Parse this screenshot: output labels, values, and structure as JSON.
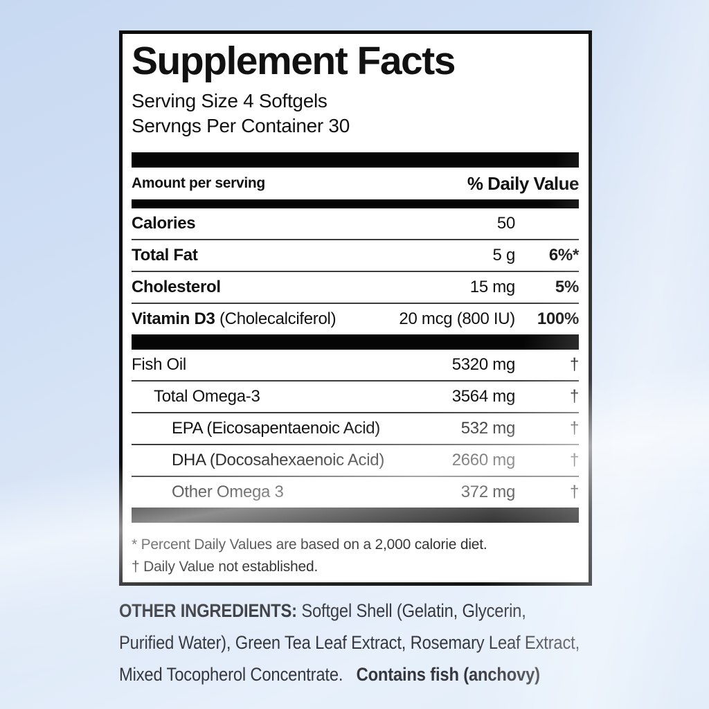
{
  "label": {
    "title": "Supplement Facts",
    "serving_size": "Serving Size 4 Softgels",
    "servings_per_container": "Servngs Per Container 30",
    "column_headers": {
      "amount": "Amount per serving",
      "daily_value": "% Daily Value"
    },
    "nutrient_rows": [
      {
        "name": "Calories",
        "paren": "",
        "amount": "50",
        "dv": "",
        "indent": 0,
        "bold_name": true,
        "bold_dv": true
      },
      {
        "name": "Total Fat",
        "paren": "",
        "amount": "5 g",
        "dv": "6%*",
        "indent": 0,
        "bold_name": true,
        "bold_dv": true
      },
      {
        "name": "Cholesterol",
        "paren": "",
        "amount": "15 mg",
        "dv": "5%",
        "indent": 0,
        "bold_name": true,
        "bold_dv": true
      },
      {
        "name": "Vitamin D3",
        "paren": " (Cholecalciferol)",
        "amount": "20 mcg (800 IU)",
        "dv": "100%",
        "indent": 0,
        "bold_name": true,
        "bold_dv": true
      }
    ],
    "blend_rows": [
      {
        "name": "Fish Oil",
        "paren": "",
        "amount": "5320 mg",
        "dv": "†",
        "indent": 0,
        "bold_name": false,
        "bold_dv": false
      },
      {
        "name": "Total Omega-3",
        "paren": "",
        "amount": "3564 mg",
        "dv": "†",
        "indent": 1,
        "bold_name": false,
        "bold_dv": false
      },
      {
        "name": "EPA (Eicosapentaenoic Acid)",
        "paren": "",
        "amount": "532 mg",
        "dv": "†",
        "indent": 2,
        "bold_name": false,
        "bold_dv": false
      },
      {
        "name": "DHA (Docosahexaenoic Acid)",
        "paren": "",
        "amount": "2660 mg",
        "dv": "†",
        "indent": 2,
        "bold_name": false,
        "bold_dv": false
      },
      {
        "name": "Other Omega 3",
        "paren": "",
        "amount": "372 mg",
        "dv": "†",
        "indent": 2,
        "bold_name": false,
        "bold_dv": false
      }
    ],
    "footnotes": [
      "* Percent Daily Values are based on a 2,000 calorie diet.",
      "† Daily Value not established."
    ]
  },
  "other_ingredients": {
    "heading": "OTHER INGREDIENTS: ",
    "body": "Softgel Shell (Gelatin, Glycerin,\nPurified Water), Green Tea Leaf Extract, Rosemary Leaf Extract,\nMixed Tocopherol Concentrate.   ",
    "allergen": "Contains fish (anchovy)"
  },
  "colors": {
    "panel_background": "#ffffff",
    "panel_border": "#0a0a0a",
    "text": "#111111",
    "other_ingredients_text": "#35373c",
    "background_top": "#c7d9f1",
    "background_bottom": "#e7f0fb"
  }
}
